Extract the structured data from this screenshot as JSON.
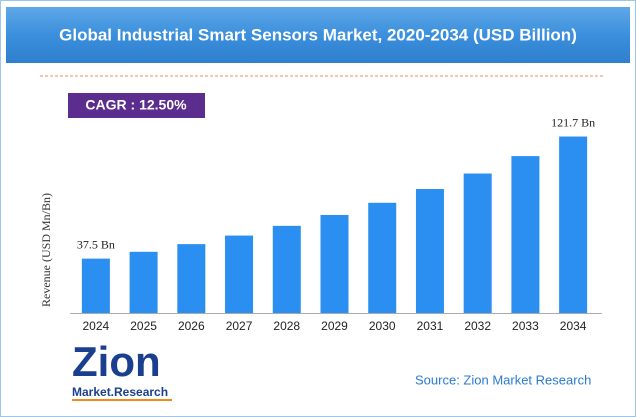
{
  "chart_data": {
    "type": "bar",
    "title": "Global Industrial Smart Sensors Market, 2020-2034 (USD Billion)",
    "cagr_label": "CAGR : 12.50%",
    "y_label": "Revenue (USD Mn/Bn)",
    "categories": [
      "2024",
      "2025",
      "2026",
      "2027",
      "2028",
      "2029",
      "2030",
      "2031",
      "2032",
      "2033",
      "2034"
    ],
    "values": [
      37.5,
      42.2,
      47.5,
      53.4,
      60.1,
      67.6,
      76.0,
      85.5,
      96.2,
      108.2,
      121.7
    ],
    "value_labels": [
      "37.5 Bn",
      null,
      null,
      null,
      null,
      null,
      null,
      null,
      null,
      null,
      "121.7 Bn"
    ],
    "color": "#2a8ff0",
    "ylim": [
      0,
      140
    ],
    "source": "Source: Zion Market Research",
    "logo": {
      "name": "Zion",
      "tagline": "Market.Research"
    }
  }
}
